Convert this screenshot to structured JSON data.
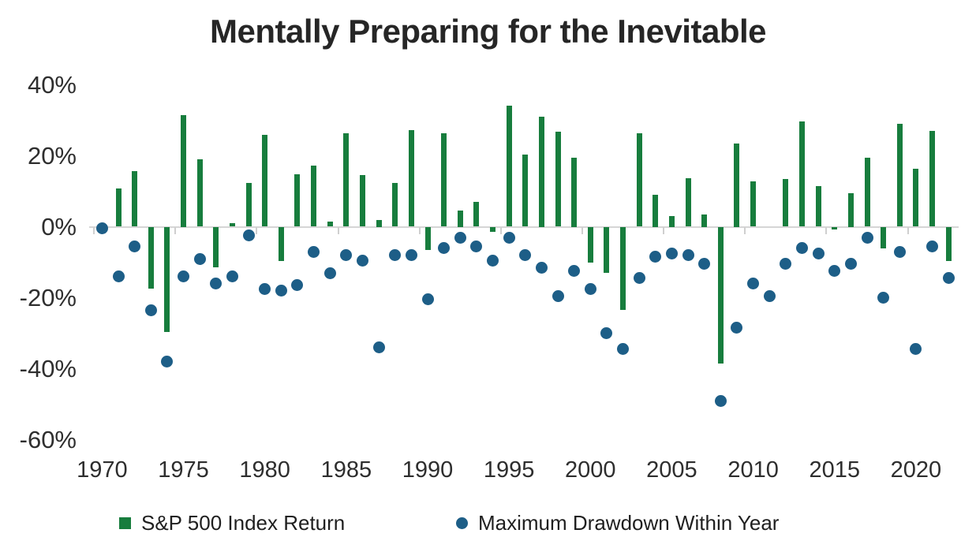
{
  "chart_data": {
    "type": "bar",
    "overlay_type": "scatter",
    "title": "Mentally Preparing for the Inevitable",
    "xlabel": "",
    "ylabel": "",
    "ylim": [
      -60,
      40
    ],
    "grid": "zero-line-only",
    "legend_position": "bottom",
    "categories": [
      1970,
      1971,
      1972,
      1973,
      1974,
      1975,
      1976,
      1977,
      1978,
      1979,
      1980,
      1981,
      1982,
      1983,
      1984,
      1985,
      1986,
      1987,
      1988,
      1989,
      1990,
      1991,
      1992,
      1993,
      1994,
      1995,
      1996,
      1997,
      1998,
      1999,
      2000,
      2001,
      2002,
      2003,
      2004,
      2005,
      2006,
      2007,
      2008,
      2009,
      2010,
      2011,
      2012,
      2013,
      2014,
      2015,
      2016,
      2017,
      2018,
      2019,
      2020,
      2021,
      2022
    ],
    "series": [
      {
        "name": "S&P 500 Index Return",
        "type": "bar",
        "color": "#177d3d",
        "values": [
          0.1,
          10.8,
          15.6,
          -17.4,
          -29.7,
          31.5,
          19.1,
          -11.5,
          1.1,
          12.3,
          25.8,
          -9.7,
          14.8,
          17.3,
          1.4,
          26.3,
          14.6,
          2.0,
          12.4,
          27.3,
          -6.6,
          26.3,
          4.5,
          7.1,
          -1.5,
          34.1,
          20.3,
          31.0,
          26.7,
          19.5,
          -10.1,
          -13.0,
          -23.4,
          26.4,
          9.0,
          3.0,
          13.6,
          3.5,
          -38.5,
          23.5,
          12.8,
          0.0,
          13.4,
          29.6,
          11.4,
          -0.7,
          9.5,
          19.4,
          -6.2,
          28.9,
          16.3,
          26.9,
          -9.6
        ]
      },
      {
        "name": "Maximum Drawdown Within Year",
        "type": "scatter",
        "color": "#1d5e87",
        "values": [
          -0.5,
          -14,
          -5.5,
          -23.5,
          -38,
          -14,
          -9,
          -16,
          -14,
          -2.5,
          -17.5,
          -18,
          -16.5,
          -7,
          -13,
          -8,
          -9.5,
          -34,
          -8,
          -8,
          -20.5,
          -6,
          -3,
          -5.5,
          -9.5,
          -3,
          -8,
          -11.5,
          -19.5,
          -12.5,
          -17.5,
          -30,
          -34.5,
          -14.5,
          -8.5,
          -7.5,
          -8,
          -10.5,
          -49,
          -28.5,
          -16,
          -19.5,
          -10.5,
          -6,
          -7.5,
          -12.5,
          -10.5,
          -3,
          -20,
          -7,
          -34.5,
          -5.5,
          -14.5
        ]
      }
    ],
    "y_ticks": [
      {
        "value": 40,
        "label": "40%"
      },
      {
        "value": 20,
        "label": "20%"
      },
      {
        "value": 0,
        "label": "0%"
      },
      {
        "value": -20,
        "label": "-20%"
      },
      {
        "value": -40,
        "label": "-40%"
      },
      {
        "value": -60,
        "label": "-60%"
      }
    ],
    "x_ticks": [
      1970,
      1975,
      1980,
      1985,
      1990,
      1995,
      2000,
      2005,
      2010,
      2015,
      2020
    ]
  },
  "colors": {
    "bar_green": "#177d3d",
    "dot_blue": "#1d5e87",
    "axis_line": "#d6d6d6",
    "text": "#262626",
    "background": "#ffffff"
  }
}
